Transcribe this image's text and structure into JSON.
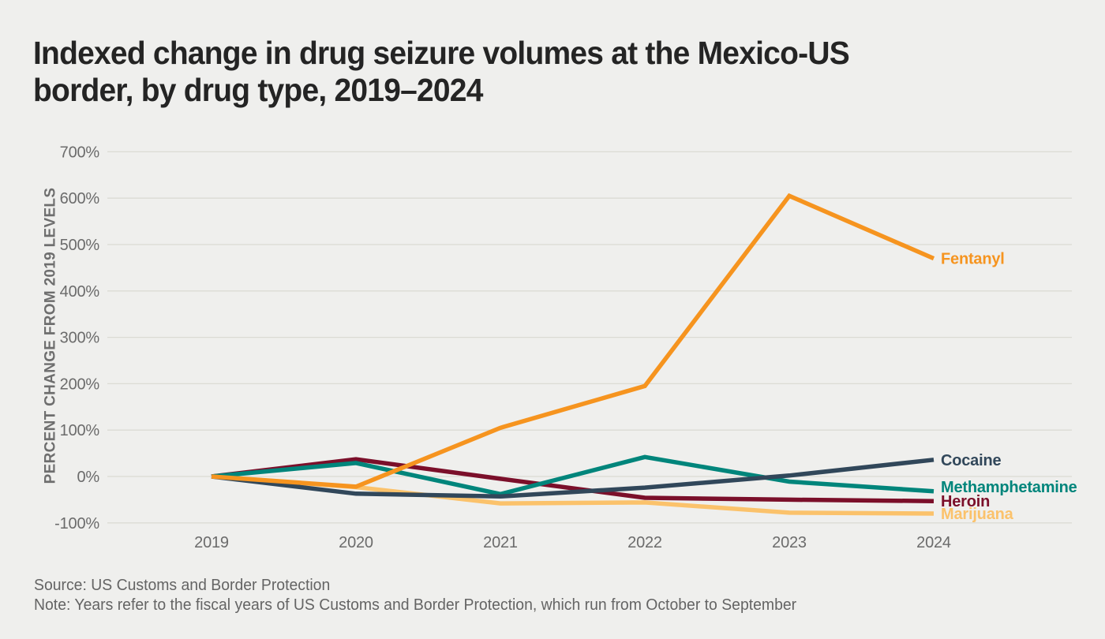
{
  "header": {
    "title_line1": "Indexed change in drug seizure volumes at the Mexico-US",
    "title_line2": "border, by drug type, 2019–2024"
  },
  "chart_data": {
    "type": "line",
    "title": "Indexed change in drug seizure volumes at the Mexico-US border, by drug type, 2019–2024",
    "x": [
      2019,
      2020,
      2021,
      2022,
      2023,
      2024
    ],
    "xtick_labels": [
      "2019",
      "2020",
      "2021",
      "2022",
      "2023",
      "2024"
    ],
    "xlabel": "",
    "ylabel": "PERCENT CHANGE FROM 2019 LEVELS",
    "ylim": [
      -100,
      700
    ],
    "yticks": [
      700,
      600,
      500,
      400,
      300,
      200,
      100,
      0,
      -100
    ],
    "ytick_labels": [
      "700%",
      "600%",
      "500%",
      "400%",
      "300%",
      "200%",
      "100%",
      "0%",
      "-100%"
    ],
    "grid": "horizontal",
    "legend_position": "line-end-labels-right",
    "series": [
      {
        "name": "Fentanyl",
        "color": "#F6941F",
        "values": [
          0,
          -22,
          105,
          195,
          605,
          470
        ]
      },
      {
        "name": "Cocaine",
        "color": "#31475A",
        "values": [
          0,
          -37,
          -43,
          -24,
          2,
          36
        ]
      },
      {
        "name": "Methamphetamine",
        "color": "#00857B",
        "values": [
          0,
          29,
          -38,
          42,
          -11,
          -32
        ]
      },
      {
        "name": "Heroin",
        "color": "#7B0F2A",
        "values": [
          0,
          37,
          -5,
          -46,
          -50,
          -53
        ]
      },
      {
        "name": "Marijuana",
        "color": "#FBC26B",
        "values": [
          0,
          -23,
          -58,
          -56,
          -78,
          -80
        ]
      }
    ]
  },
  "footer": {
    "source": "Source: US Customs and Border Protection",
    "note": "Note: Years refer to the fiscal years of US Customs and Border Protection, which run from October to September"
  },
  "colors": {
    "background": "#EFEFED",
    "gridline": "#DBDBD4",
    "axis_text": "#6B6B6B",
    "title_text": "#242424",
    "footer_text": "#646464"
  }
}
